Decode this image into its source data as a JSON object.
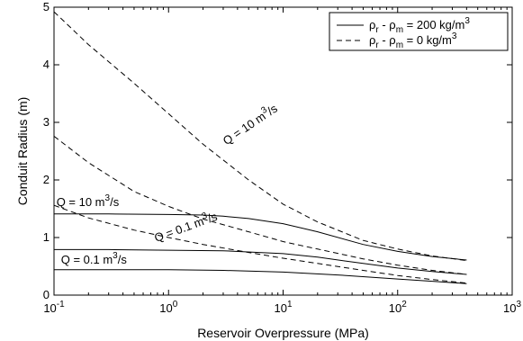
{
  "chart_data": {
    "type": "line",
    "xlabel": "Reservoir Overpressure (MPa)",
    "ylabel": "Conduit Radius (m)",
    "xscale": "log",
    "xlim": [
      0.1,
      1000
    ],
    "ylim": [
      0,
      5
    ],
    "x_ticks": [
      0.1,
      1,
      10,
      100,
      1000
    ],
    "x_tick_labels": [
      {
        "base": "10",
        "exp": "-1"
      },
      {
        "base": "10",
        "exp": "0"
      },
      {
        "base": "10",
        "exp": "1"
      },
      {
        "base": "10",
        "exp": "2"
      },
      {
        "base": "10",
        "exp": "3"
      }
    ],
    "y_ticks": [
      0,
      1,
      2,
      3,
      4,
      5
    ],
    "y_tick_labels": [
      "0",
      "1",
      "2",
      "3",
      "4",
      "5"
    ],
    "grid": false,
    "legend": {
      "position": "top-right",
      "entries": [
        {
          "style": "solid",
          "prefix": "ρ",
          "sub1": "r",
          "mid": " - ρ",
          "sub2": "m",
          "suffix": " = 200 kg/m",
          "sup": "3"
        },
        {
          "style": "dashed",
          "prefix": "ρ",
          "sub1": "r",
          "mid": " - ρ",
          "sub2": "m",
          "suffix": " = 0 kg/m",
          "sup": "3"
        }
      ]
    },
    "series": [
      {
        "style": "solid",
        "points": [
          [
            0.1,
            1.41
          ],
          [
            0.3,
            1.41
          ],
          [
            1,
            1.4
          ],
          [
            2,
            1.39
          ],
          [
            3,
            1.37
          ],
          [
            5,
            1.33
          ],
          [
            10,
            1.24
          ],
          [
            20,
            1.1
          ],
          [
            50,
            0.88
          ],
          [
            100,
            0.76
          ],
          [
            200,
            0.67
          ],
          [
            400,
            0.61
          ]
        ]
      },
      {
        "style": "solid",
        "points": [
          [
            0.1,
            0.79
          ],
          [
            0.3,
            0.79
          ],
          [
            1,
            0.78
          ],
          [
            3,
            0.77
          ],
          [
            10,
            0.72
          ],
          [
            20,
            0.66
          ],
          [
            50,
            0.55
          ],
          [
            100,
            0.47
          ],
          [
            200,
            0.41
          ],
          [
            400,
            0.36
          ]
        ]
      },
      {
        "style": "solid",
        "points": [
          [
            0.1,
            0.44
          ],
          [
            0.3,
            0.44
          ],
          [
            1,
            0.44
          ],
          [
            3,
            0.43
          ],
          [
            10,
            0.4
          ],
          [
            30,
            0.35
          ],
          [
            100,
            0.28
          ],
          [
            200,
            0.24
          ],
          [
            400,
            0.2
          ]
        ]
      },
      {
        "style": "dashed",
        "points": [
          [
            0.1,
            4.92
          ],
          [
            0.2,
            4.35
          ],
          [
            0.5,
            3.68
          ],
          [
            1,
            3.15
          ],
          [
            2,
            2.62
          ],
          [
            5,
            2.0
          ],
          [
            10,
            1.58
          ],
          [
            20,
            1.27
          ],
          [
            50,
            0.95
          ],
          [
            100,
            0.8
          ],
          [
            200,
            0.68
          ],
          [
            400,
            0.6
          ]
        ]
      },
      {
        "style": "dashed",
        "points": [
          [
            0.1,
            2.76
          ],
          [
            0.2,
            2.3
          ],
          [
            0.5,
            1.8
          ],
          [
            1,
            1.54
          ],
          [
            2,
            1.32
          ],
          [
            5,
            1.1
          ],
          [
            10,
            0.93
          ],
          [
            20,
            0.8
          ],
          [
            50,
            0.63
          ],
          [
            100,
            0.52
          ],
          [
            200,
            0.43
          ],
          [
            400,
            0.36
          ]
        ]
      },
      {
        "style": "dashed",
        "points": [
          [
            0.1,
            1.56
          ],
          [
            0.2,
            1.34
          ],
          [
            0.5,
            1.13
          ],
          [
            1,
            1.0
          ],
          [
            2,
            0.88
          ],
          [
            5,
            0.74
          ],
          [
            10,
            0.64
          ],
          [
            20,
            0.55
          ],
          [
            50,
            0.43
          ],
          [
            100,
            0.34
          ],
          [
            200,
            0.27
          ],
          [
            400,
            0.21
          ]
        ]
      }
    ],
    "annotations": [
      {
        "text": "Q = 10 m",
        "sup": "3",
        "tail": "/s",
        "x": 3.2,
        "y": 2.6,
        "rotation": -34
      },
      {
        "text": "Q = 10 m",
        "sup": "3",
        "tail": "/s",
        "x": 0.105,
        "y": 1.55,
        "rotation": 0
      },
      {
        "text": "Q = 0.1 m",
        "sup": "3",
        "tail": "/s",
        "x": 0.78,
        "y": 0.92,
        "rotation": -20
      },
      {
        "text": "Q = 0.1 m",
        "sup": "3",
        "tail": "/s",
        "x": 0.115,
        "y": 0.55,
        "rotation": 0
      }
    ]
  }
}
